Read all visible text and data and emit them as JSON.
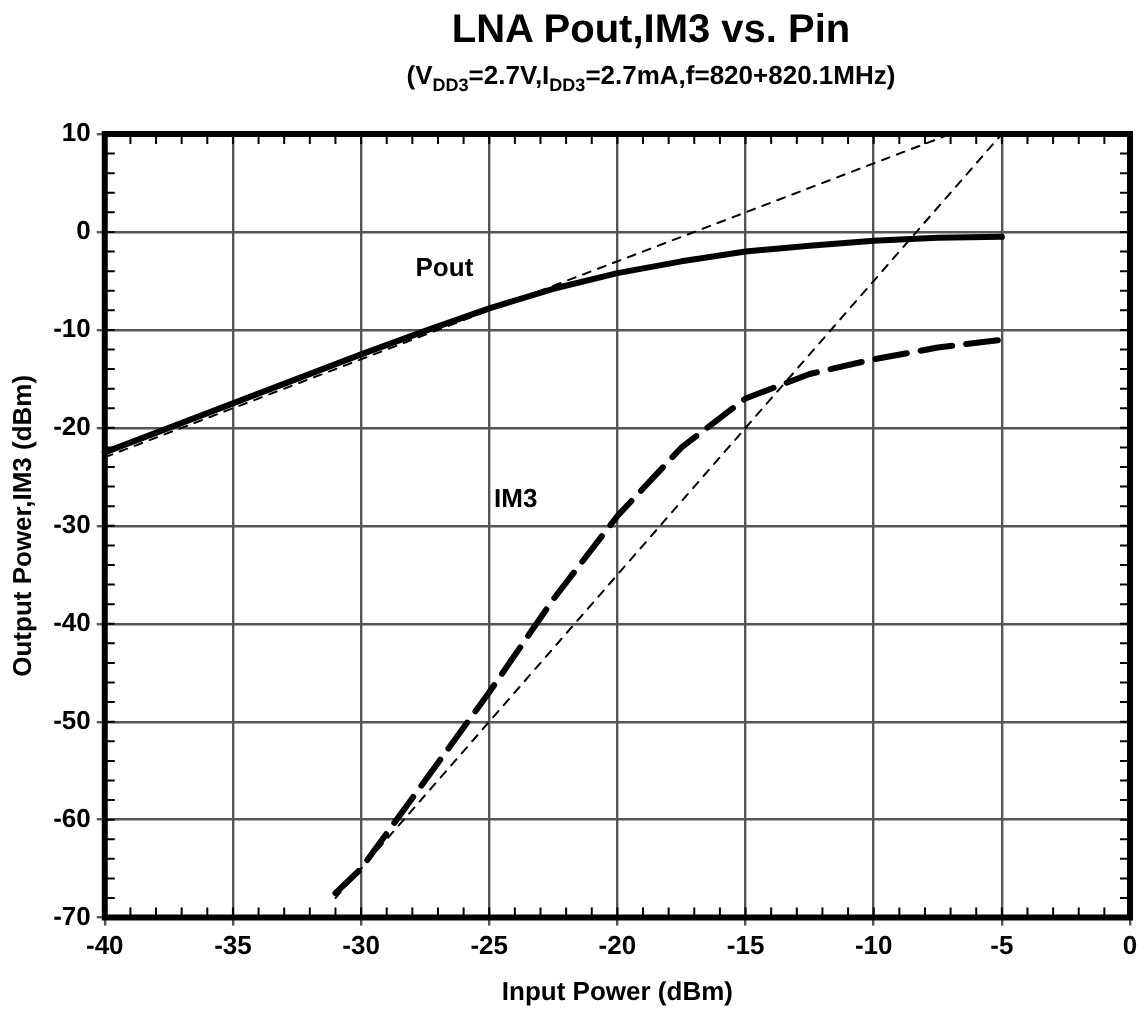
{
  "chart_data": {
    "type": "line",
    "title": "LNA Pout,IM3 vs. Pin",
    "subtitle": "(V$_{DD3}$=2.7V,I$_{DD3}$=2.7mA,f=820+820.1MHz)",
    "xlabel": "Input Power (dBm)",
    "ylabel": "Output Power,IM3 (dBm)",
    "xlim": [
      -40,
      0
    ],
    "xticks": [
      -40,
      -35,
      -30,
      -25,
      -20,
      -15,
      -10,
      -5,
      0
    ],
    "ylim": [
      -70,
      10
    ],
    "yticks": [
      -70,
      -60,
      -50,
      -40,
      -30,
      -20,
      -10,
      0,
      10
    ],
    "grid": true,
    "legend": false,
    "marker": "none",
    "series": [
      {
        "name": "Pout",
        "color": "#000000",
        "line_style": "solid",
        "x": [
          -40,
          -37.5,
          -35,
          -32.5,
          -30,
          -27.5,
          -25,
          -22.5,
          -20,
          -17.5,
          -15,
          -12.5,
          -10,
          -7.5,
          -5
        ],
        "values": [
          -22.5,
          -20,
          -17.5,
          -15,
          -12.5,
          -10.1,
          -7.8,
          -5.8,
          -4.2,
          -3,
          -2,
          -1.4,
          -0.9,
          -0.6,
          -0.5
        ]
      },
      {
        "name": "IM3",
        "color": "#000000",
        "line_style": "dashed",
        "x": [
          -31,
          -30,
          -27.5,
          -25,
          -22.5,
          -20,
          -17.5,
          -15,
          -12.5,
          -10,
          -7.5,
          -5
        ],
        "values": [
          -67.5,
          -65,
          -56,
          -47,
          -37.5,
          -29,
          -22,
          -17,
          -14.5,
          -13,
          -11.8,
          -11
        ]
      },
      {
        "color": "#000000",
        "line_style": "dotted",
        "x": [
          -40,
          -7
        ],
        "values": [
          -23,
          10
        ]
      },
      {
        "color": "#000000",
        "line_style": "dotted",
        "x": [
          -31,
          -5
        ],
        "values": [
          -68,
          10
        ]
      }
    ]
  }
}
